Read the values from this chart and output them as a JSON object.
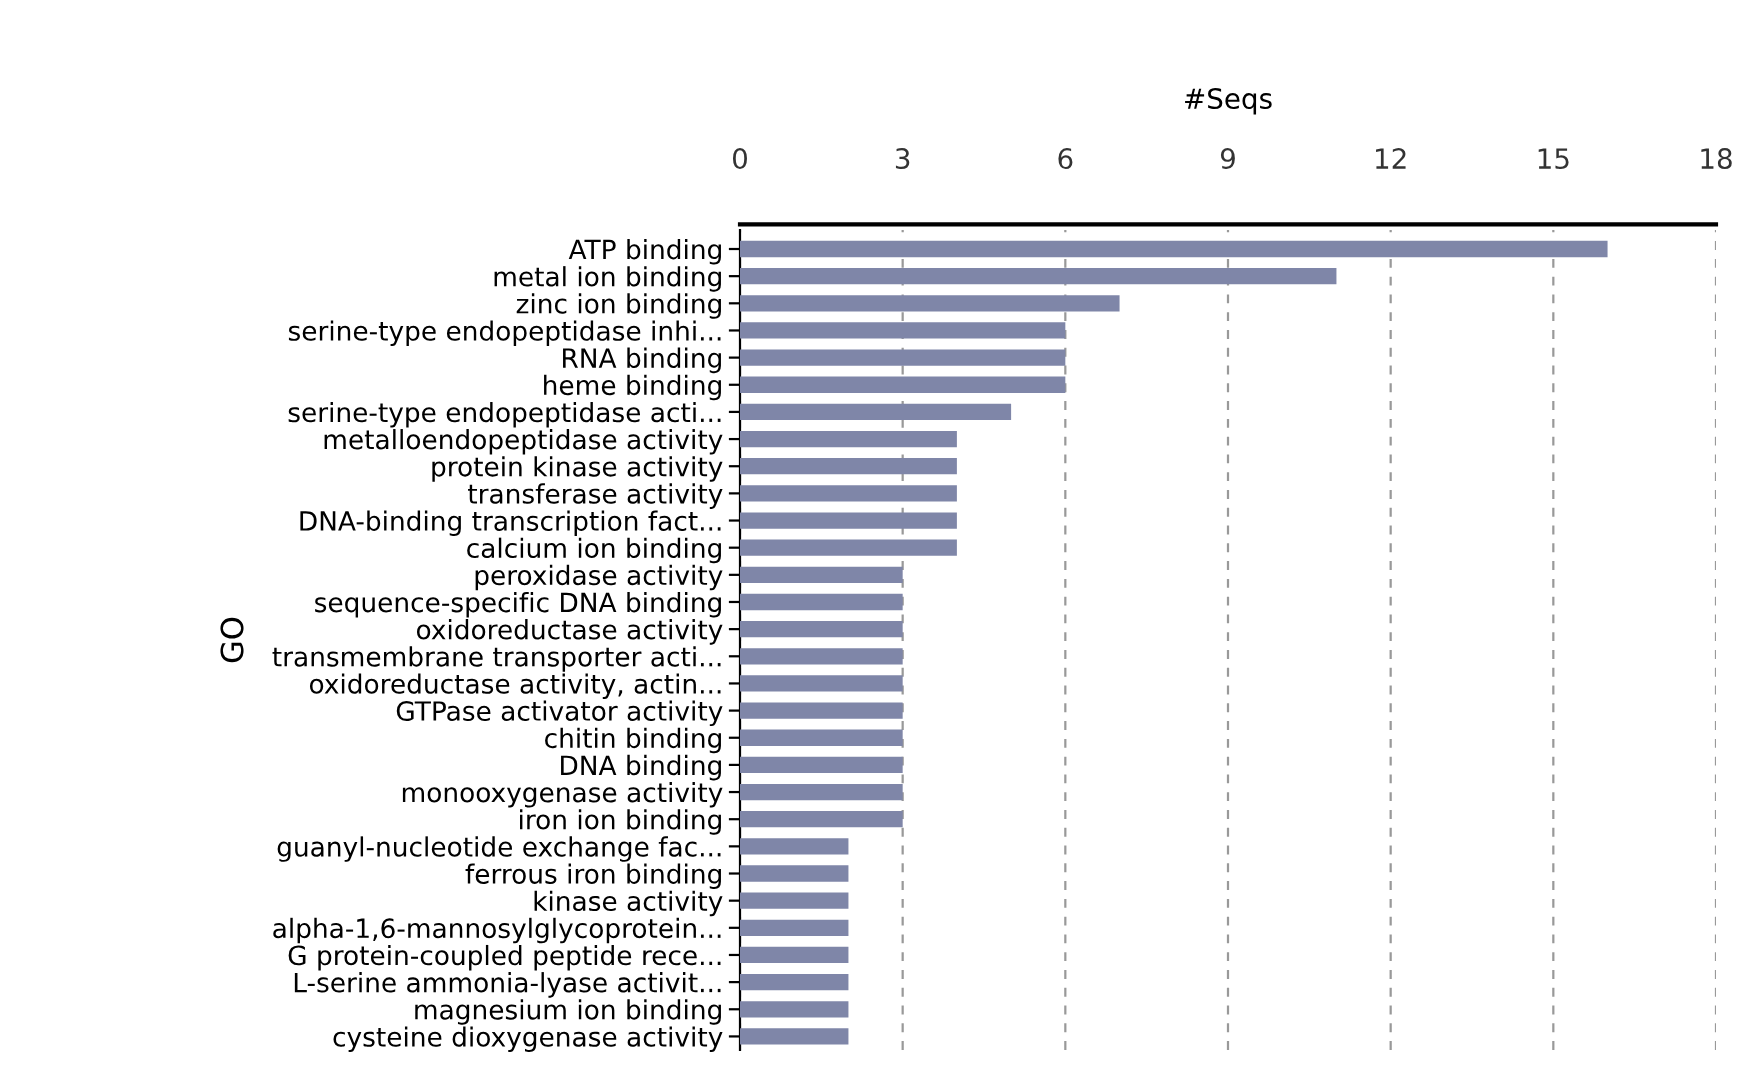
{
  "chart_data": {
    "type": "bar",
    "orientation": "horizontal",
    "xlabel": "#Seqs",
    "ylabel": "GO",
    "categories": [
      "ATP binding",
      "metal ion binding",
      "zinc ion binding",
      "serine-type endopeptidase inhi...",
      "RNA binding",
      "heme binding",
      "serine-type endopeptidase acti...",
      "metalloendopeptidase activity",
      "protein kinase activity",
      "transferase activity",
      "DNA-binding transcription fact...",
      "calcium ion binding",
      "peroxidase activity",
      "sequence-specific DNA binding",
      "oxidoreductase activity",
      "transmembrane transporter acti...",
      "oxidoreductase activity, actin...",
      "GTPase activator activity",
      "chitin binding",
      "DNA binding",
      "monooxygenase activity",
      "iron ion binding",
      "guanyl-nucleotide exchange fac...",
      "ferrous iron binding",
      "kinase activity",
      "alpha-1,6-mannosylglycoprotein...",
      "G protein-coupled peptide rece...",
      "L-serine ammonia-lyase activit...",
      "magnesium ion binding",
      "cysteine dioxygenase activity"
    ],
    "values": [
      16,
      11,
      7,
      6,
      6,
      6,
      5,
      4,
      4,
      4,
      4,
      4,
      3,
      3,
      3,
      3,
      3,
      3,
      3,
      3,
      3,
      3,
      2,
      2,
      2,
      2,
      2,
      2,
      2,
      2
    ],
    "color": "#7f86a8",
    "xlim": [
      0,
      18
    ],
    "xticks": [
      0,
      3,
      6,
      9,
      12,
      15,
      18
    ],
    "grid": "x"
  }
}
